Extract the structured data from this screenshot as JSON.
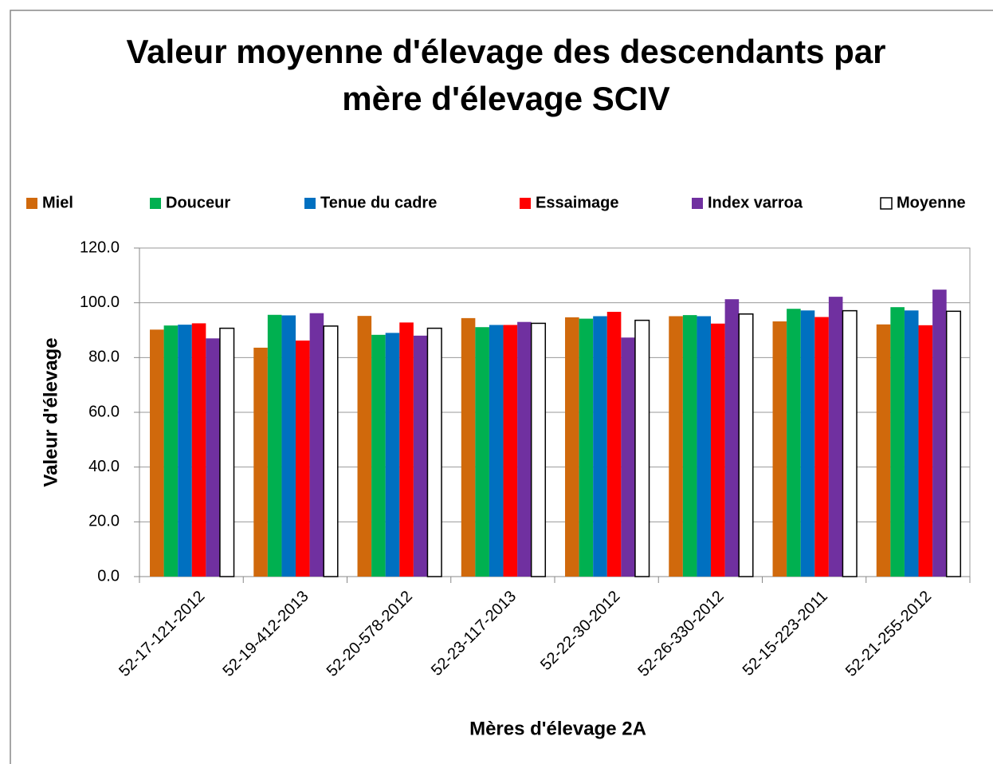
{
  "chart_data": {
    "type": "bar",
    "title": [
      "Valeur moyenne d'élevage des descendants par",
      "mère d'élevage SCIV"
    ],
    "x_label": "Mères d'élevage 2A",
    "y_label": "Valeur d'élevage",
    "categories": [
      "52-17-121-2012",
      "52-19-412-2013",
      "52-20-578-2012",
      "52-23-117-2013",
      "52-22-30-2012",
      "52-26-330-2012",
      "52-15-223-2011",
      "52-21-255-2012"
    ],
    "series": [
      {
        "name": "Miel",
        "color": "#d0690c",
        "values": [
          90.2,
          83.6,
          95.2,
          94.4,
          94.7,
          95.1,
          93.2,
          92.1
        ]
      },
      {
        "name": "Douceur",
        "color": "#00b050",
        "values": [
          91.7,
          95.6,
          88.3,
          91.1,
          94.2,
          95.5,
          97.8,
          98.4
        ]
      },
      {
        "name": "Tenue du cadre",
        "color": "#0070c0",
        "values": [
          92.0,
          95.4,
          89.0,
          91.9,
          95.1,
          95.1,
          97.2,
          97.2
        ]
      },
      {
        "name": "Essaimage",
        "color": "#ff0000",
        "values": [
          92.5,
          86.2,
          92.8,
          91.9,
          96.7,
          92.4,
          94.8,
          91.8
        ]
      },
      {
        "name": "Index varroa",
        "color": "#7030a0",
        "values": [
          87.0,
          96.2,
          88.0,
          93.0,
          87.3,
          101.3,
          102.2,
          104.8
        ]
      },
      {
        "name": "Moyenne",
        "color": "#ffffff",
        "values": [
          90.7,
          91.5,
          90.7,
          92.5,
          93.6,
          95.9,
          97.1,
          96.9
        ]
      }
    ],
    "ylim": [
      0,
      120
    ],
    "yticks": [
      {
        "value": 0,
        "label": "0.0"
      },
      {
        "value": 20,
        "label": "20.0"
      },
      {
        "value": 40,
        "label": "40.0"
      },
      {
        "value": 60,
        "label": "60.0"
      },
      {
        "value": 80,
        "label": "80.0"
      },
      {
        "value": 100,
        "label": "100.0"
      },
      {
        "value": 120,
        "label": "120.0"
      }
    ],
    "grid": true,
    "legend": "top"
  }
}
